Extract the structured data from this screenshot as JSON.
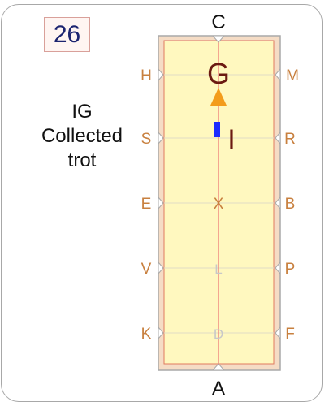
{
  "test_number": "26",
  "movement": {
    "code": "IG",
    "description": [
      "Collected",
      "trot"
    ]
  },
  "arena": {
    "end_letters": {
      "top": "C",
      "bottom": "A"
    },
    "left_letters": [
      "H",
      "S",
      "E",
      "V",
      "K"
    ],
    "right_letters": [
      "M",
      "R",
      "B",
      "P",
      "F"
    ],
    "centerline_letters": [
      "G",
      "I",
      "X",
      "L",
      "D"
    ]
  },
  "colors": {
    "arena_fill": "#fff8bf",
    "arena_surround": "#f5dcc5",
    "wall": "#a9a9a9",
    "track_line": "#e07a5f",
    "letter_color": "#c8803f",
    "faint_letter": "#c8c8c8",
    "highlight_letter": "#6b1a12",
    "direction_arrow": "#f39c1c",
    "rider_marker": "#1b2bff",
    "number_color": "#1c2470"
  },
  "icons": {
    "direction": "up-triangle-arrow-icon",
    "rider": "horse-rider-marker-icon"
  }
}
